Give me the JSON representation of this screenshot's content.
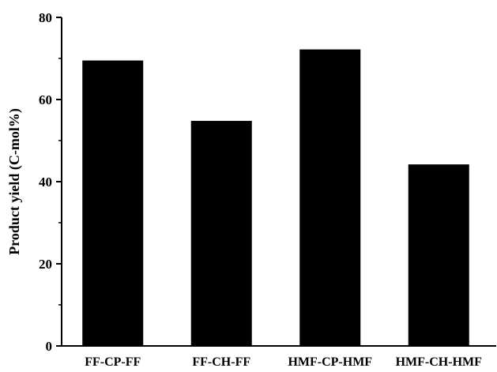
{
  "chart_data": {
    "type": "bar",
    "title": "",
    "xlabel": "",
    "ylabel": "Product yield (C-mol%)",
    "categories": [
      "FF-CP-FF",
      "FF-CH-FF",
      "HMF-CP-HMF",
      "HMF-CH-HMF"
    ],
    "values": [
      69.5,
      54.8,
      72.2,
      44.2
    ],
    "ylim": [
      0,
      80
    ],
    "yticks": [
      0,
      20,
      40,
      60,
      80
    ],
    "grid": false,
    "bar_color": "#000000"
  }
}
